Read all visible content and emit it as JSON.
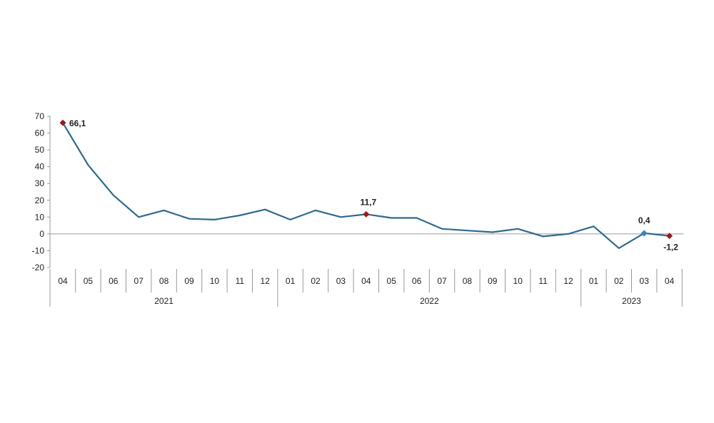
{
  "chart_data": {
    "type": "line",
    "title": "",
    "xlabel": "",
    "ylabel": "",
    "ylim": [
      -20,
      70
    ],
    "yticks": [
      "70",
      "60",
      "50",
      "40",
      "30",
      "20",
      "10",
      "0",
      "-10",
      "-20"
    ],
    "grid": false,
    "categories": [
      "04",
      "05",
      "06",
      "07",
      "08",
      "09",
      "10",
      "11",
      "12",
      "01",
      "02",
      "03",
      "04",
      "05",
      "06",
      "07",
      "08",
      "09",
      "10",
      "11",
      "12",
      "01",
      "02",
      "03",
      "04"
    ],
    "years": [
      {
        "label": "2021",
        "start": 0,
        "end": 8
      },
      {
        "label": "2022",
        "start": 9,
        "end": 20
      },
      {
        "label": "2023",
        "start": 21,
        "end": 24
      }
    ],
    "series": [
      {
        "values": [
          66.1,
          41,
          23,
          10,
          14,
          9,
          8.5,
          11,
          14.5,
          8.5,
          14,
          10,
          11.7,
          9.5,
          9.5,
          3,
          2,
          1,
          3,
          -1.5,
          0,
          4.5,
          -8.5,
          0.4,
          -1.2
        ],
        "color": "#2e6a8e"
      }
    ],
    "annotations": [
      {
        "index": 0,
        "text": "66,1",
        "color": "#9b1c1c"
      },
      {
        "index": 12,
        "text": "11,7",
        "color": "#9b1c1c"
      },
      {
        "index": 23,
        "text": "0,4",
        "color": "#2e86c1"
      },
      {
        "index": 24,
        "text": "-1,2",
        "color": "#9b1c1c"
      }
    ]
  }
}
